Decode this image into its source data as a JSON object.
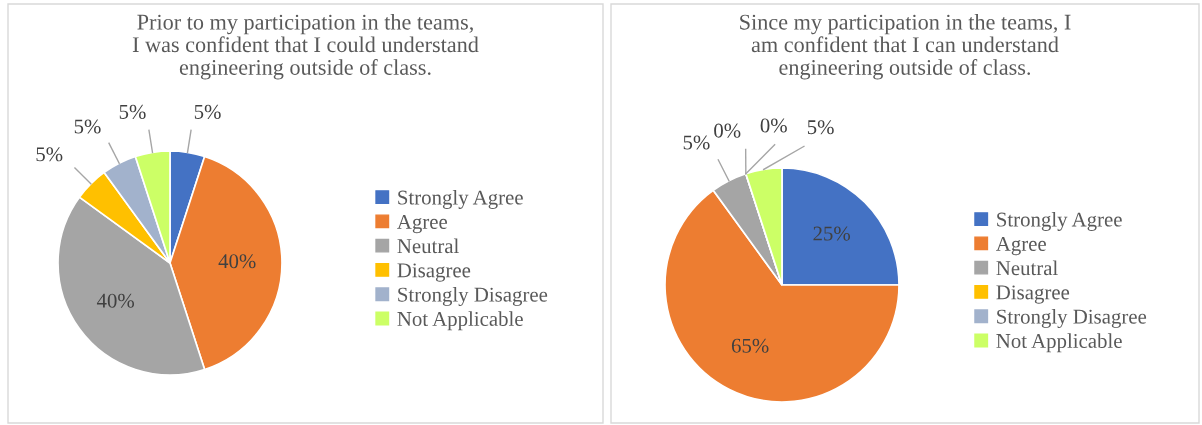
{
  "chart_data": [
    {
      "type": "pie",
      "title": "Prior to my participation in the teams,\nI was confident that I could understand\nengineering outside of class.",
      "categories": [
        "Strongly Agree",
        "Agree",
        "Neutral",
        "Disagree",
        "Strongly Disagree",
        "Not Applicable"
      ],
      "values": [
        5,
        40,
        40,
        5,
        5,
        5
      ],
      "value_labels": [
        "5%",
        "40%",
        "40%",
        "5%",
        "5%",
        "5%"
      ],
      "colors": [
        "#4472c4",
        "#ed7d31",
        "#a5a5a5",
        "#ffc000",
        "#a2b2cc",
        "#ccff66"
      ],
      "legend": "right"
    },
    {
      "type": "pie",
      "title": "Since my participation in the teams, I\nam confident that I can understand\nengineering outside of class.",
      "categories": [
        "Strongly Agree",
        "Agree",
        "Neutral",
        "Disagree",
        "Strongly Disagree",
        "Not Applicable"
      ],
      "values": [
        25,
        65,
        5,
        0,
        0,
        5
      ],
      "value_labels": [
        "25%",
        "65%",
        "5%",
        "0%",
        "0%",
        "5%"
      ],
      "colors": [
        "#4472c4",
        "#ed7d31",
        "#a5a5a5",
        "#ffc000",
        "#a2b2cc",
        "#ccff66"
      ],
      "legend": "right"
    }
  ]
}
